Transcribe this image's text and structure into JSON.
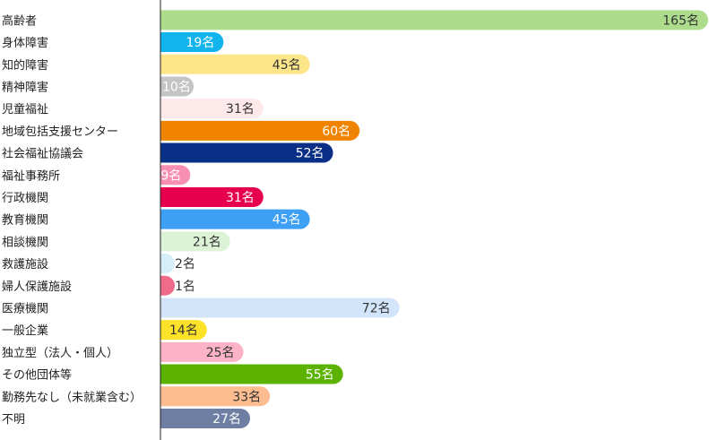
{
  "chart_data": {
    "type": "bar",
    "orientation": "horizontal",
    "unit_suffix": "名",
    "categories": [
      "高齢者",
      "身体障害",
      "知的障害",
      "精神障害",
      "児童福祉",
      "地域包括支援センター",
      "社会福祉協議会",
      "福祉事務所",
      "行政機関",
      "教育機関",
      "相談機関",
      "救護施設",
      "婦人保護施設",
      "医療機関",
      "一般企業",
      "独立型（法人・個人）",
      "その他団体等",
      "勤務先なし（未就業含む）",
      "不明"
    ],
    "values": [
      165,
      19,
      45,
      10,
      31,
      60,
      52,
      9,
      31,
      45,
      21,
      2,
      1,
      72,
      14,
      25,
      55,
      33,
      27
    ],
    "value_labels": [
      "165名",
      "19名",
      "45名",
      "10名",
      "31名",
      "60名",
      "52名",
      "9名",
      "31名",
      "45名",
      "21名",
      "2名",
      "1名",
      "72名",
      "14名",
      "25名",
      "55名",
      "33名",
      "27名"
    ],
    "colors": [
      "#acdc8c",
      "#12b4ee",
      "#fde68a",
      "#c4c4c4",
      "#fde8ea",
      "#f08400",
      "#0a2f86",
      "#f78fb2",
      "#e6004e",
      "#3da0f5",
      "#ddf3d6",
      "#d6edfa",
      "#ef6b8a",
      "#d3e5fb",
      "#fce229",
      "#fdb3c7",
      "#5bb300",
      "#fdbd91",
      "#6e7fa3"
    ],
    "label_colors": [
      "#333333",
      "#ffffff",
      "#333333",
      "#ffffff",
      "#333333",
      "#ffffff",
      "#ffffff",
      "#ffffff",
      "#ffffff",
      "#ffffff",
      "#333333",
      "#333333",
      "#333333",
      "#333333",
      "#333333",
      "#333333",
      "#ffffff",
      "#333333",
      "#ffffff"
    ],
    "xlim": [
      0,
      165
    ],
    "legend": "none",
    "grid": false
  }
}
